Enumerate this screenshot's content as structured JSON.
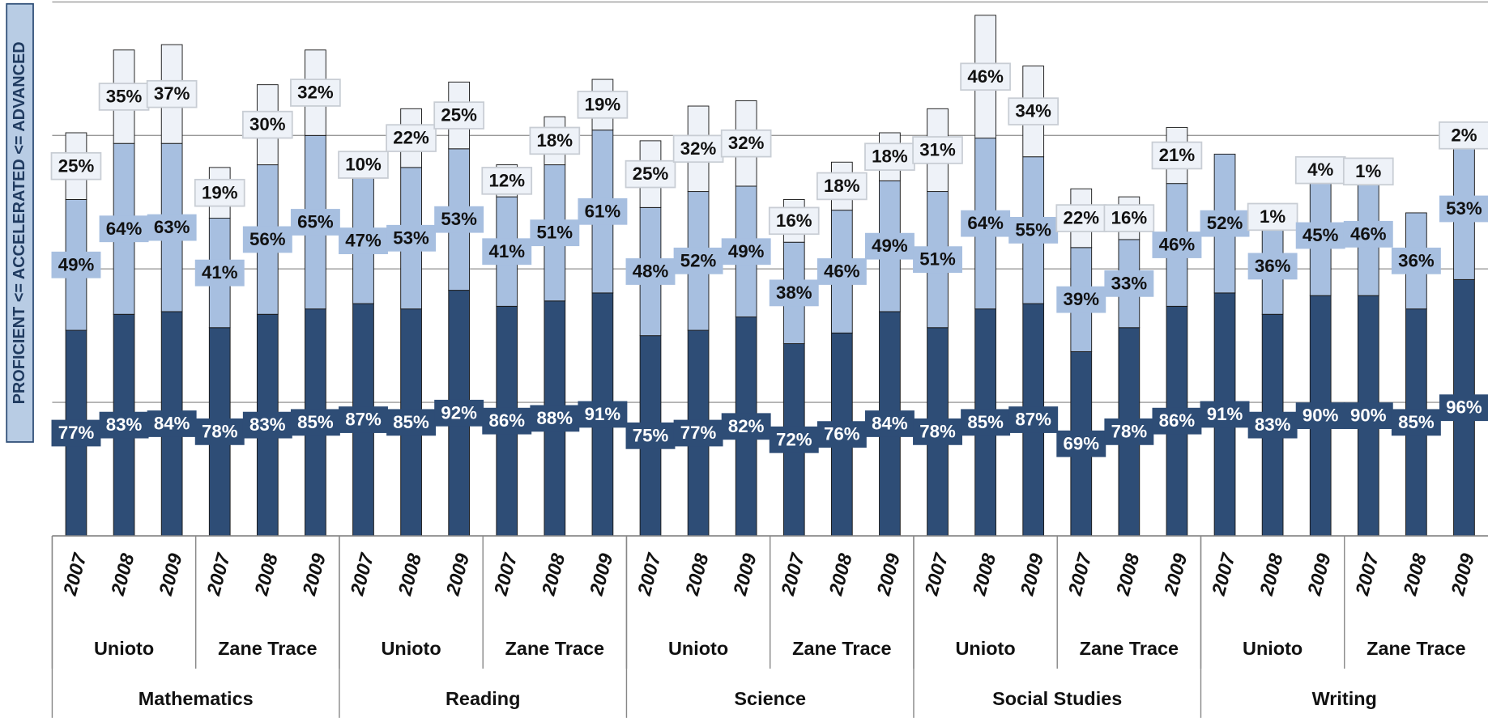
{
  "chart_data": {
    "type": "stacked_bar",
    "y_label": "PROFICIENT <= ACCELERATED <= ADVANCED",
    "categories": [
      "2007",
      "2008",
      "2009",
      "2007",
      "2008",
      "2009",
      "2007",
      "2008",
      "2009",
      "2007",
      "2008",
      "2009",
      "2007",
      "2008",
      "2009",
      "2007",
      "2008",
      "2009",
      "2007",
      "2008",
      "2009",
      "2007",
      "2008",
      "2009",
      "2007",
      "2008",
      "2009",
      "2007",
      "2008",
      "2009"
    ],
    "schools": [
      "Unioto",
      "Zane Trace",
      "Unioto",
      "Zane Trace",
      "Unioto",
      "Zane Trace",
      "Unioto",
      "Zane Trace",
      "Unioto",
      "Zane Trace"
    ],
    "subjects": [
      "Mathematics",
      "Reading",
      "Science",
      "Social Studies",
      "Writing"
    ],
    "series": [
      {
        "color": "#2e4d76",
        "values": [
          77,
          83,
          84,
          78,
          83,
          85,
          87,
          85,
          92,
          86,
          88,
          91,
          75,
          77,
          82,
          72,
          76,
          84,
          78,
          85,
          87,
          69,
          78,
          86,
          91,
          83,
          90,
          90,
          85,
          96
        ],
        "value_labels": [
          "77%",
          "83%",
          "84%",
          "78%",
          "83%",
          "85%",
          "87%",
          "85%",
          "92%",
          "86%",
          "88%",
          "91%",
          "75%",
          "77%",
          "82%",
          "72%",
          "76%",
          "84%",
          "78%",
          "85%",
          "87%",
          "69%",
          "78%",
          "86%",
          "91%",
          "83%",
          "90%",
          "90%",
          "85%",
          "96%"
        ]
      },
      {
        "color": "#a7bfe0",
        "values": [
          49,
          64,
          63,
          41,
          56,
          65,
          47,
          53,
          53,
          41,
          51,
          61,
          48,
          52,
          49,
          38,
          46,
          49,
          51,
          64,
          55,
          39,
          33,
          46,
          52,
          36,
          45,
          46,
          36,
          53
        ],
        "value_labels": [
          "49%",
          "64%",
          "63%",
          "41%",
          "56%",
          "65%",
          "47%",
          "53%",
          "53%",
          "41%",
          "51%",
          "61%",
          "48%",
          "52%",
          "49%",
          "38%",
          "46%",
          "49%",
          "51%",
          "64%",
          "55%",
          "39%",
          "33%",
          "46%",
          "52%",
          "36%",
          "45%",
          "46%",
          "36%",
          "53%"
        ]
      },
      {
        "color": "#eef2f8",
        "values": [
          25,
          35,
          37,
          19,
          30,
          32,
          10,
          22,
          25,
          12,
          18,
          19,
          25,
          32,
          32,
          16,
          18,
          18,
          31,
          46,
          34,
          22,
          16,
          21,
          null,
          1,
          4,
          1,
          null,
          2
        ],
        "value_labels": [
          "25%",
          "35%",
          "37%",
          "19%",
          "30%",
          "32%",
          "10%",
          "22%",
          "25%",
          "12%",
          "18%",
          "19%",
          "25%",
          "32%",
          "32%",
          "16%",
          "18%",
          "18%",
          "31%",
          "46%",
          "34%",
          "22%",
          "16%",
          "21%",
          null,
          "1%",
          "4%",
          "1%",
          null,
          "2%"
        ]
      }
    ],
    "ylim": [
      0,
      200
    ],
    "yticks": [
      0,
      50,
      100,
      150,
      200
    ],
    "grid": true
  }
}
